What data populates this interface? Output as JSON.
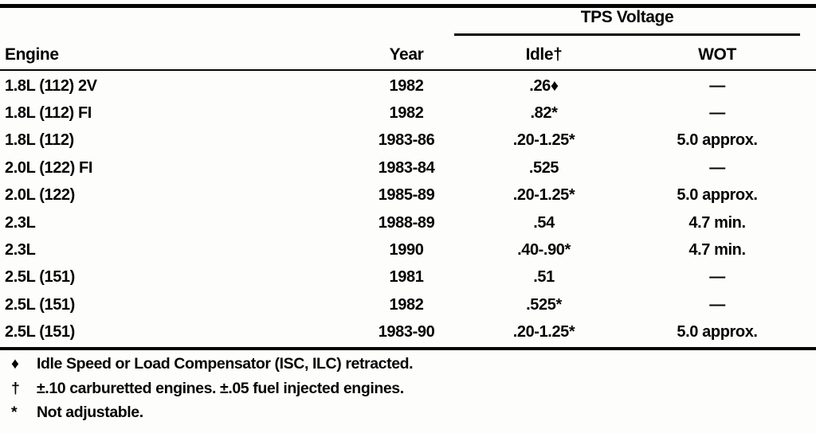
{
  "page": {
    "group_header": "TPS Voltage",
    "columns": {
      "engine": "Engine",
      "year": "Year",
      "idle": "Idle†",
      "wot": "WOT"
    },
    "rows": [
      [
        "1.8L (112) 2V",
        "1982",
        ".26♦",
        "—"
      ],
      [
        "1.8L (112) FI",
        "1982",
        ".82*",
        "—"
      ],
      [
        "1.8L (112)",
        "1983-86",
        ".20-1.25*",
        "5.0 approx."
      ],
      [
        "2.0L (122) FI",
        "1983-84",
        ".525",
        "—"
      ],
      [
        "2.0L (122)",
        "1985-89",
        ".20-1.25*",
        "5.0 approx."
      ],
      [
        "2.3L",
        "1988-89",
        ".54",
        "4.7 min."
      ],
      [
        "2.3L",
        "1990",
        ".40-.90*",
        "4.7 min."
      ],
      [
        "2.5L (151)",
        "1981",
        ".51",
        "—"
      ],
      [
        "2.5L (151)",
        "1982",
        ".525*",
        "—"
      ],
      [
        "2.5L (151)",
        "1983-90",
        ".20-1.25*",
        "5.0 approx."
      ]
    ],
    "footnotes": [
      {
        "symbol": "♦",
        "text": "Idle Speed or Load Compensator (ISC, ILC) retracted."
      },
      {
        "symbol": "†",
        "text": "±.10 carburetted engines. ±.05 fuel injected engines."
      },
      {
        "symbol": "*",
        "text": "Not adjustable."
      }
    ]
  }
}
